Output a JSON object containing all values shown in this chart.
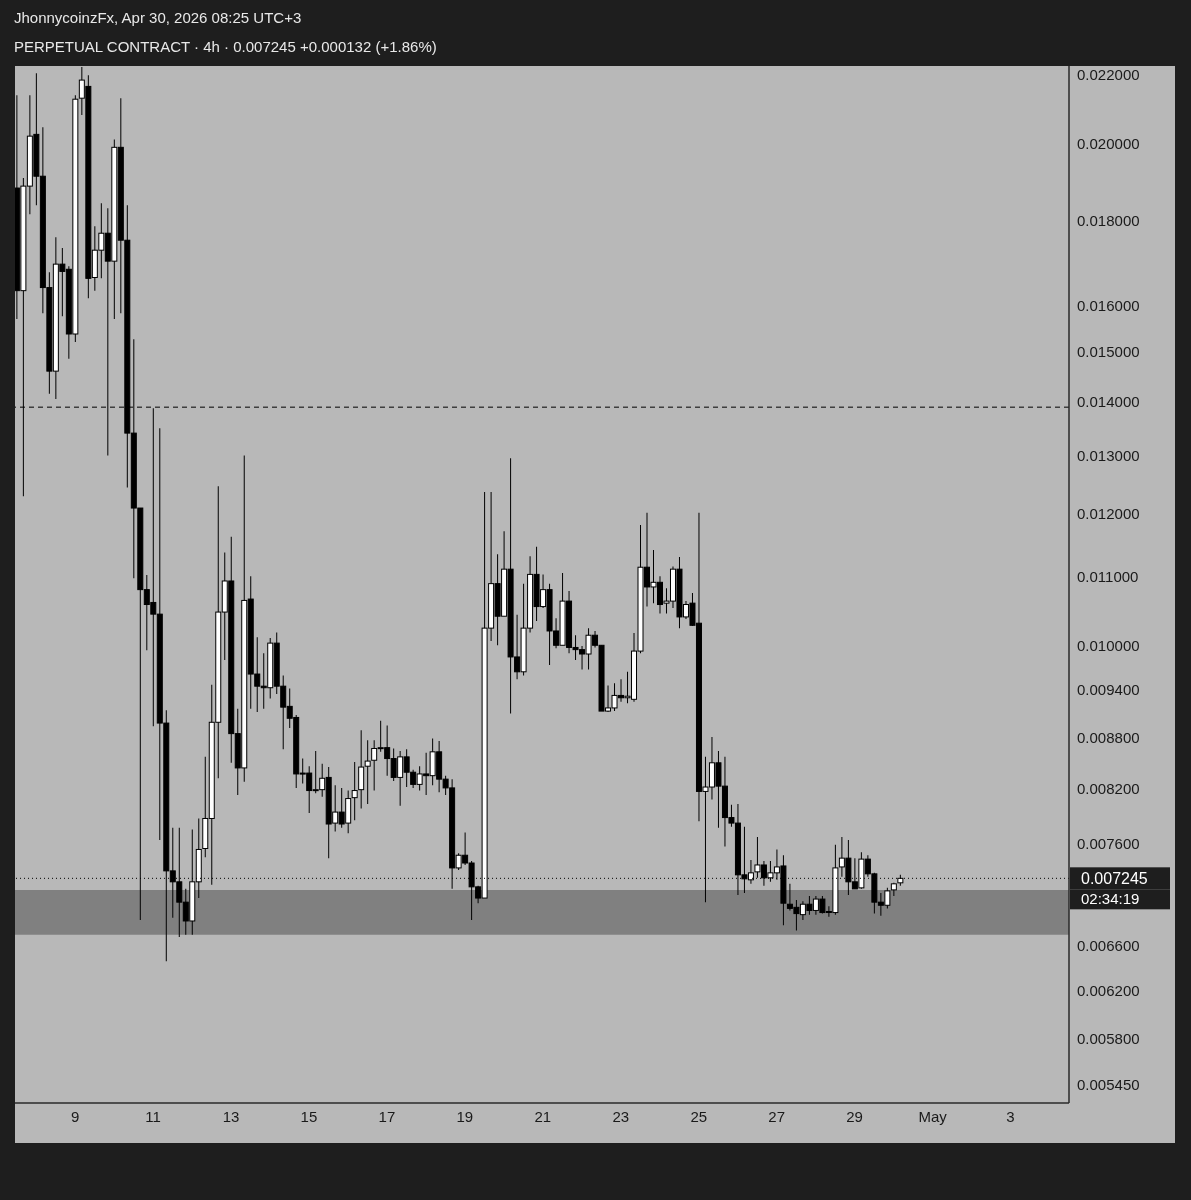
{
  "chart_data": {
    "type": "candlestick",
    "title": "PERPETUAL CONTRACT · 4h · 0.007245 +0.000132 (+1.86%)",
    "annotations": [
      "JhonnycoinzFx, Apr 30, 2026 08:25 UTC+3",
      "02:34:19"
    ],
    "x": [
      "2026-04-07T12:00",
      "2026-04-07T16:00",
      "2026-04-07T20:00",
      "2026-04-08T00:00",
      "2026-04-08T04:00",
      "2026-04-08T08:00",
      "2026-04-08T12:00",
      "2026-04-08T16:00",
      "2026-04-08T20:00",
      "2026-04-09T00:00",
      "2026-04-09T04:00",
      "2026-04-09T08:00",
      "2026-04-09T12:00",
      "2026-04-09T16:00",
      "2026-04-09T20:00",
      "2026-04-10T00:00",
      "2026-04-10T04:00",
      "2026-04-10T08:00",
      "2026-04-10T12:00",
      "2026-04-10T16:00",
      "2026-04-10T20:00",
      "2026-04-11T00:00",
      "2026-04-11T04:00",
      "2026-04-11T08:00",
      "2026-04-11T12:00",
      "2026-04-11T16:00",
      "2026-04-11T20:00",
      "2026-04-12T00:00",
      "2026-04-12T04:00",
      "2026-04-12T08:00",
      "2026-04-12T12:00",
      "2026-04-12T16:00",
      "2026-04-12T20:00",
      "2026-04-13T00:00",
      "2026-04-13T04:00",
      "2026-04-13T08:00",
      "2026-04-13T12:00",
      "2026-04-13T16:00",
      "2026-04-13T20:00",
      "2026-04-14T00:00",
      "2026-04-14T04:00",
      "2026-04-14T08:00",
      "2026-04-14T12:00",
      "2026-04-14T16:00",
      "2026-04-14T20:00",
      "2026-04-15T00:00",
      "2026-04-15T04:00",
      "2026-04-15T08:00",
      "2026-04-15T12:00",
      "2026-04-15T16:00",
      "2026-04-15T20:00",
      "2026-04-16T00:00",
      "2026-04-16T04:00",
      "2026-04-16T08:00",
      "2026-04-16T12:00",
      "2026-04-16T16:00",
      "2026-04-16T20:00",
      "2026-04-17T00:00",
      "2026-04-17T04:00",
      "2026-04-17T08:00",
      "2026-04-17T12:00",
      "2026-04-17T16:00",
      "2026-04-17T20:00",
      "2026-04-18T00:00",
      "2026-04-18T04:00",
      "2026-04-18T08:00",
      "2026-04-18T12:00",
      "2026-04-18T16:00",
      "2026-04-18T20:00",
      "2026-04-19T00:00",
      "2026-04-19T04:00",
      "2026-04-19T08:00",
      "2026-04-19T12:00",
      "2026-04-19T16:00",
      "2026-04-19T20:00",
      "2026-04-20T00:00",
      "2026-04-20T04:00",
      "2026-04-20T08:00",
      "2026-04-20T12:00",
      "2026-04-20T16:00",
      "2026-04-20T20:00",
      "2026-04-21T00:00",
      "2026-04-21T04:00",
      "2026-04-21T08:00",
      "2026-04-21T12:00",
      "2026-04-21T16:00",
      "2026-04-21T20:00",
      "2026-04-22T00:00",
      "2026-04-22T04:00",
      "2026-04-22T08:00",
      "2026-04-22T12:00",
      "2026-04-22T16:00",
      "2026-04-22T20:00",
      "2026-04-23T00:00",
      "2026-04-23T04:00",
      "2026-04-23T08:00",
      "2026-04-23T12:00",
      "2026-04-23T16:00",
      "2026-04-23T20:00",
      "2026-04-24T00:00",
      "2026-04-24T04:00",
      "2026-04-24T08:00",
      "2026-04-24T12:00",
      "2026-04-24T16:00",
      "2026-04-24T20:00",
      "2026-04-25T00:00",
      "2026-04-25T04:00",
      "2026-04-25T08:00",
      "2026-04-25T12:00",
      "2026-04-25T16:00",
      "2026-04-25T20:00",
      "2026-04-26T00:00",
      "2026-04-26T04:00",
      "2026-04-26T08:00",
      "2026-04-26T12:00",
      "2026-04-26T16:00",
      "2026-04-26T20:00",
      "2026-04-27T00:00",
      "2026-04-27T04:00",
      "2026-04-27T08:00",
      "2026-04-27T12:00",
      "2026-04-27T16:00",
      "2026-04-27T20:00",
      "2026-04-28T00:00",
      "2026-04-28T04:00",
      "2026-04-28T08:00",
      "2026-04-28T12:00",
      "2026-04-28T16:00",
      "2026-04-28T20:00",
      "2026-04-29T00:00",
      "2026-04-29T04:00",
      "2026-04-29T08:00",
      "2026-04-29T12:00",
      "2026-04-29T16:00",
      "2026-04-29T20:00",
      "2026-04-30T00:00",
      "2026-04-30T04:00"
    ],
    "ohlc": [
      [
        0.01882,
        0.0214,
        0.0157,
        0.01633
      ],
      [
        0.01633,
        0.01908,
        0.01229,
        0.01887
      ],
      [
        0.01887,
        0.0214,
        0.01815,
        0.02022
      ],
      [
        0.02027,
        0.02206,
        0.01838,
        0.01913
      ],
      [
        0.01913,
        0.02047,
        0.01583,
        0.0164
      ],
      [
        0.0164,
        0.01675,
        0.01416,
        0.01461
      ],
      [
        0.01461,
        0.01758,
        0.01406,
        0.01694
      ],
      [
        0.01694,
        0.01732,
        0.01576,
        0.01677
      ],
      [
        0.01682,
        0.01689,
        0.01486,
        0.01538
      ],
      [
        0.01538,
        0.0214,
        0.01521,
        0.02128
      ],
      [
        0.02131,
        0.02225,
        0.02082,
        0.02185
      ],
      [
        0.02166,
        0.022,
        0.01616,
        0.01661
      ],
      [
        0.01663,
        0.01785,
        0.01633,
        0.01727
      ],
      [
        0.01727,
        0.01843,
        0.01661,
        0.01768
      ],
      [
        0.01768,
        0.0183,
        0.013,
        0.01701
      ],
      [
        0.01701,
        0.02013,
        0.0157,
        0.01991
      ],
      [
        0.01991,
        0.02131,
        0.01583,
        0.01751
      ],
      [
        0.01751,
        0.01838,
        0.01244,
        0.01341
      ],
      [
        0.01341,
        0.01527,
        0.01097,
        0.01209
      ],
      [
        0.01209,
        0.01209,
        0.00684,
        0.0108
      ],
      [
        0.0108,
        0.01102,
        0.00993,
        0.01058
      ],
      [
        0.01061,
        0.01388,
        0.00894,
        0.01044
      ],
      [
        0.01044,
        0.0135,
        0.00764,
        0.00898
      ],
      [
        0.00898,
        0.00914,
        0.00646,
        0.00732
      ],
      [
        0.00732,
        0.00777,
        0.00686,
        0.00721
      ],
      [
        0.00721,
        0.00777,
        0.00668,
        0.00701
      ],
      [
        0.00701,
        0.00714,
        0.0067,
        0.00683
      ],
      [
        0.00683,
        0.00775,
        0.0067,
        0.00721
      ],
      [
        0.00721,
        0.00787,
        0.00705,
        0.00754
      ],
      [
        0.00755,
        0.00857,
        0.00746,
        0.00787
      ],
      [
        0.00787,
        0.00947,
        0.00718,
        0.00899
      ],
      [
        0.00899,
        0.01246,
        0.00832,
        0.01047
      ],
      [
        0.01047,
        0.01137,
        0.0098,
        0.01093
      ],
      [
        0.01093,
        0.01162,
        0.0085,
        0.00885
      ],
      [
        0.00885,
        0.00916,
        0.00813,
        0.00844
      ],
      [
        0.00844,
        0.013,
        0.00828,
        0.01064
      ],
      [
        0.01066,
        0.011,
        0.00916,
        0.00961
      ],
      [
        0.00961,
        0.01011,
        0.00912,
        0.00945
      ],
      [
        0.00945,
        0.00989,
        0.00916,
        0.00943
      ],
      [
        0.00943,
        0.0101,
        0.00929,
        0.01003
      ],
      [
        0.01003,
        0.01018,
        0.00935,
        0.00945
      ],
      [
        0.00945,
        0.00959,
        0.00866,
        0.00918
      ],
      [
        0.00919,
        0.00942,
        0.00892,
        0.00904
      ],
      [
        0.00905,
        0.00908,
        0.00821,
        0.00837
      ],
      [
        0.00838,
        0.00855,
        0.00826,
        0.00837
      ],
      [
        0.00838,
        0.00846,
        0.00793,
        0.00818
      ],
      [
        0.00818,
        0.00864,
        0.00815,
        0.00819
      ],
      [
        0.00819,
        0.00849,
        0.00811,
        0.00832
      ],
      [
        0.00833,
        0.00845,
        0.00745,
        0.00781
      ],
      [
        0.00782,
        0.00824,
        0.00773,
        0.00794
      ],
      [
        0.00794,
        0.00821,
        0.00777,
        0.00781
      ],
      [
        0.00782,
        0.00818,
        0.00771,
        0.00809
      ],
      [
        0.0081,
        0.00851,
        0.00785,
        0.00818
      ],
      [
        0.00819,
        0.00889,
        0.00798,
        0.00845
      ],
      [
        0.00846,
        0.00877,
        0.00803,
        0.00852
      ],
      [
        0.00853,
        0.00877,
        0.00818,
        0.00867
      ],
      [
        0.00867,
        0.00901,
        0.00863,
        0.00868
      ],
      [
        0.00868,
        0.00895,
        0.00835,
        0.00855
      ],
      [
        0.00855,
        0.00867,
        0.00829,
        0.00833
      ],
      [
        0.00833,
        0.00864,
        0.00801,
        0.00857
      ],
      [
        0.00857,
        0.00866,
        0.00822,
        0.00839
      ],
      [
        0.00839,
        0.00842,
        0.00821,
        0.00825
      ],
      [
        0.00825,
        0.00846,
        0.00818,
        0.00837
      ],
      [
        0.00837,
        0.00862,
        0.00813,
        0.00835
      ],
      [
        0.00835,
        0.00879,
        0.00824,
        0.00863
      ],
      [
        0.00863,
        0.00876,
        0.00816,
        0.00831
      ],
      [
        0.00831,
        0.00835,
        0.00813,
        0.00821
      ],
      [
        0.00821,
        0.00831,
        0.00714,
        0.00735
      ],
      [
        0.00735,
        0.0075,
        0.00733,
        0.00748
      ],
      [
        0.00748,
        0.00772,
        0.00738,
        0.0074
      ],
      [
        0.0074,
        0.00742,
        0.00684,
        0.00716
      ],
      [
        0.00716,
        0.00717,
        0.007,
        0.00705
      ],
      [
        0.00705,
        0.01236,
        0.00705,
        0.01024
      ],
      [
        0.01024,
        0.01236,
        0.01006,
        0.01089
      ],
      [
        0.01089,
        0.01134,
        0.01,
        0.01041
      ],
      [
        0.01041,
        0.01171,
        0.01041,
        0.01111
      ],
      [
        0.01111,
        0.01295,
        0.0091,
        0.00984
      ],
      [
        0.00984,
        0.01043,
        0.00954,
        0.00964
      ],
      [
        0.00964,
        0.01089,
        0.00959,
        0.01024
      ],
      [
        0.01024,
        0.01131,
        0.01018,
        0.01103
      ],
      [
        0.01103,
        0.01146,
        0.01034,
        0.01055
      ],
      [
        0.01055,
        0.01103,
        0.01053,
        0.0108
      ],
      [
        0.0108,
        0.01089,
        0.00973,
        0.0102
      ],
      [
        0.0102,
        0.01038,
        0.00996,
        0.01
      ],
      [
        0.01,
        0.01105,
        0.01,
        0.01063
      ],
      [
        0.01063,
        0.01078,
        0.00989,
        0.00997
      ],
      [
        0.00997,
        0.01014,
        0.0098,
        0.00994
      ],
      [
        0.00994,
        0.00999,
        0.00967,
        0.00988
      ],
      [
        0.00988,
        0.01024,
        0.00967,
        0.01014
      ],
      [
        0.01014,
        0.0102,
        0.00997,
        0.01
      ],
      [
        0.01,
        0.01,
        0.00913,
        0.00913
      ],
      [
        0.00913,
        0.00946,
        0.00912,
        0.00917
      ],
      [
        0.00917,
        0.00949,
        0.00913,
        0.00933
      ],
      [
        0.00933,
        0.00954,
        0.00925,
        0.0093
      ],
      [
        0.0093,
        0.00964,
        0.00923,
        0.00932
      ],
      [
        0.00928,
        0.01017,
        0.00925,
        0.00992
      ],
      [
        0.00992,
        0.01181,
        0.00989,
        0.01114
      ],
      [
        0.01114,
        0.01201,
        0.01055,
        0.01084
      ],
      [
        0.01084,
        0.01141,
        0.0106,
        0.01091
      ],
      [
        0.01091,
        0.011,
        0.01045,
        0.01058
      ],
      [
        0.0106,
        0.01082,
        0.01045,
        0.01063
      ],
      [
        0.01063,
        0.01115,
        0.01053,
        0.01111
      ],
      [
        0.01111,
        0.0113,
        0.01024,
        0.0104
      ],
      [
        0.0104,
        0.01063,
        0.01037,
        0.01058
      ],
      [
        0.0106,
        0.01075,
        0.01027,
        0.01028
      ],
      [
        0.01031,
        0.01201,
        0.00784,
        0.00817
      ],
      [
        0.00817,
        0.00857,
        0.00701,
        0.00822
      ],
      [
        0.00822,
        0.00881,
        0.00808,
        0.0085
      ],
      [
        0.0085,
        0.00864,
        0.00777,
        0.00823
      ],
      [
        0.00823,
        0.00857,
        0.00757,
        0.00788
      ],
      [
        0.00788,
        0.00802,
        0.00778,
        0.00782
      ],
      [
        0.00782,
        0.00803,
        0.00708,
        0.00728
      ],
      [
        0.00728,
        0.00778,
        0.0071,
        0.00724
      ],
      [
        0.00723,
        0.00743,
        0.00719,
        0.0073
      ],
      [
        0.00731,
        0.00767,
        0.00725,
        0.00738
      ],
      [
        0.00738,
        0.00742,
        0.00717,
        0.00725
      ],
      [
        0.00725,
        0.00742,
        0.00721,
        0.0073
      ],
      [
        0.0073,
        0.00754,
        0.00723,
        0.00736
      ],
      [
        0.00737,
        0.00748,
        0.00679,
        0.007
      ],
      [
        0.00699,
        0.00719,
        0.00693,
        0.00695
      ],
      [
        0.00696,
        0.00703,
        0.00674,
        0.0069
      ],
      [
        0.00689,
        0.00702,
        0.00684,
        0.00699
      ],
      [
        0.00699,
        0.00707,
        0.00689,
        0.00693
      ],
      [
        0.00693,
        0.00707,
        0.00689,
        0.00704
      ],
      [
        0.00704,
        0.00707,
        0.0069,
        0.00691
      ],
      [
        0.00692,
        0.00697,
        0.00687,
        0.00692
      ],
      [
        0.00691,
        0.00759,
        0.00689,
        0.00735
      ],
      [
        0.00736,
        0.00767,
        0.00726,
        0.00745
      ],
      [
        0.00745,
        0.00764,
        0.00708,
        0.00721
      ],
      [
        0.00721,
        0.00745,
        0.00714,
        0.00714
      ],
      [
        0.00715,
        0.00751,
        0.00714,
        0.00744
      ],
      [
        0.00744,
        0.00748,
        0.00726,
        0.00729
      ],
      [
        0.00729,
        0.0073,
        0.0069,
        0.00701
      ],
      [
        0.00701,
        0.0071,
        0.00688,
        0.00698
      ],
      [
        0.00698,
        0.00715,
        0.00695,
        0.00712
      ],
      [
        0.00713,
        0.0072,
        0.00707,
        0.00719
      ],
      [
        0.0072,
        0.00728,
        0.00717,
        0.007245
      ]
    ],
    "colors": [
      "#000000",
      "#ffffff",
      "#ffffff",
      "#000000",
      "#000000",
      "#000000",
      "#ffffff",
      "#000000",
      "#000000",
      "#ffffff",
      "#ffffff",
      "#000000",
      "#ffffff",
      "#ffffff",
      "#000000",
      "#ffffff",
      "#000000",
      "#000000",
      "#000000",
      "#000000",
      "#000000",
      "#000000",
      "#000000",
      "#000000",
      "#000000",
      "#000000",
      "#000000",
      "#ffffff",
      "#ffffff",
      "#ffffff",
      "#ffffff",
      "#ffffff",
      "#ffffff",
      "#000000",
      "#000000",
      "#ffffff",
      "#000000",
      "#000000",
      "#000000",
      "#ffffff",
      "#000000",
      "#000000",
      "#000000",
      "#000000",
      "#000000",
      "#000000",
      "#ffffff",
      "#ffffff",
      "#000000",
      "#ffffff",
      "#000000",
      "#ffffff",
      "#ffffff",
      "#ffffff",
      "#ffffff",
      "#ffffff",
      "#ffffff",
      "#000000",
      "#000000",
      "#ffffff",
      "#000000",
      "#000000",
      "#ffffff",
      "#000000",
      "#ffffff",
      "#000000",
      "#000000",
      "#000000",
      "#ffffff",
      "#000000",
      "#000000",
      "#000000",
      "#ffffff",
      "#ffffff",
      "#000000",
      "#ffffff",
      "#000000",
      "#000000",
      "#ffffff",
      "#ffffff",
      "#000000",
      "#ffffff",
      "#000000",
      "#000000",
      "#ffffff",
      "#000000",
      "#000000",
      "#000000",
      "#ffffff",
      "#000000",
      "#000000",
      "#ffffff",
      "#ffffff",
      "#000000",
      "#ffffff",
      "#ffffff",
      "#ffffff",
      "#000000",
      "#ffffff",
      "#000000",
      "#ffffff",
      "#ffffff",
      "#000000",
      "#ffffff",
      "#000000",
      "#000000",
      "#ffffff",
      "#ffffff",
      "#000000",
      "#000000",
      "#000000",
      "#000000",
      "#000000",
      "#ffffff",
      "#ffffff",
      "#000000",
      "#ffffff",
      "#ffffff",
      "#000000",
      "#000000",
      "#000000",
      "#ffffff",
      "#000000",
      "#ffffff",
      "#000000",
      "#000000",
      "#ffffff",
      "#ffffff",
      "#000000",
      "#000000",
      "#ffffff",
      "#000000",
      "#000000",
      "#000000",
      "#ffffff",
      "#ffffff",
      "#ffffff"
    ],
    "log": "y",
    "xlim": [
      "2026-04-07T11:00",
      "2026-05-04T12:00"
    ],
    "xticks": [
      {
        "value": "2026-04-09",
        "label": "9"
      },
      {
        "value": "2026-04-11",
        "label": "11"
      },
      {
        "value": "2026-04-13",
        "label": "13"
      },
      {
        "value": "2026-04-15",
        "label": "15"
      },
      {
        "value": "2026-04-17",
        "label": "17"
      },
      {
        "value": "2026-04-19",
        "label": "19"
      },
      {
        "value": "2026-04-21",
        "label": "21"
      },
      {
        "value": "2026-04-23",
        "label": "23"
      },
      {
        "value": "2026-04-25",
        "label": "25"
      },
      {
        "value": "2026-04-27",
        "label": "27"
      },
      {
        "value": "2026-04-29",
        "label": "29"
      },
      {
        "value": "2026-05-01",
        "label": "May"
      },
      {
        "value": "2026-05-03",
        "label": "3"
      }
    ],
    "ylim": [
      0.00531,
      0.02228
    ],
    "yticks": [
      {
        "value": 0.00545,
        "label": "0.005450"
      },
      {
        "value": 0.0058,
        "label": "0.005800"
      },
      {
        "value": 0.0062,
        "label": "0.006200"
      },
      {
        "value": 0.0066,
        "label": "0.006600"
      },
      {
        "value": 0.0076,
        "label": "0.007600"
      },
      {
        "value": 0.0082,
        "label": "0.008200"
      },
      {
        "value": 0.0088,
        "label": "0.008800"
      },
      {
        "value": 0.0094,
        "label": "0.009400"
      },
      {
        "value": 0.01,
        "label": "0.010000"
      },
      {
        "value": 0.011,
        "label": "0.011000"
      },
      {
        "value": 0.012,
        "label": "0.012000"
      },
      {
        "value": 0.013,
        "label": "0.013000"
      },
      {
        "value": 0.014,
        "label": "0.014000"
      },
      {
        "value": 0.015,
        "label": "0.015000"
      },
      {
        "value": 0.016,
        "label": "0.016000"
      },
      {
        "value": 0.018,
        "label": "0.018000"
      },
      {
        "value": 0.02,
        "label": "0.020000"
      },
      {
        "value": 0.022,
        "label": "0.022000"
      }
    ],
    "ref_lines": [
      {
        "axis": "y",
        "value": 0.007245,
        "label": "0.007245",
        "color": "#000000",
        "line_style": "dotted"
      },
      {
        "axis": "y",
        "value": 0.0139,
        "color": "#000000",
        "line_style": "dashed"
      }
    ],
    "bands": [
      {
        "axis": "y",
        "from": 0.0067,
        "to": 0.00713,
        "color": "#808080"
      }
    ]
  }
}
